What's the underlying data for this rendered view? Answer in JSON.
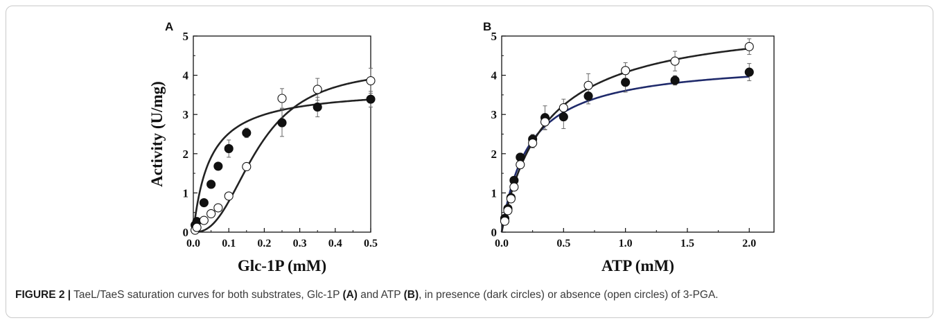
{
  "chart_data": [
    {
      "panel_label": "A",
      "type": "scatter",
      "xlabel": "Glc-1P (mM)",
      "ylabel": "Activity (U/mg)",
      "xlim": [
        0,
        0.5
      ],
      "ylim": [
        0,
        5
      ],
      "xticks": [
        "0.0",
        "0.1",
        "0.2",
        "0.3",
        "0.4",
        "0.5"
      ],
      "yticks": [
        "0",
        "1",
        "2",
        "3",
        "4",
        "5"
      ],
      "series": [
        {
          "marker": "filled",
          "x": [
            0.005,
            0.01,
            0.03,
            0.05,
            0.07,
            0.1,
            0.15,
            0.25,
            0.35,
            0.5
          ],
          "y": [
            0.18,
            0.27,
            0.75,
            1.22,
            1.68,
            2.13,
            2.53,
            2.79,
            3.19,
            3.39
          ],
          "err": [
            0.03,
            0.03,
            0.05,
            0.06,
            0.08,
            0.22,
            0.12,
            0.35,
            0.25,
            0.2
          ],
          "fit": {
            "model": "mm",
            "vmax": 3.7,
            "k": 0.047
          }
        },
        {
          "marker": "open",
          "x": [
            0.005,
            0.01,
            0.03,
            0.05,
            0.07,
            0.1,
            0.15,
            0.25,
            0.35,
            0.5
          ],
          "y": [
            0.05,
            0.12,
            0.3,
            0.47,
            0.62,
            0.92,
            1.67,
            3.41,
            3.64,
            3.86
          ],
          "err": [
            0.02,
            0.02,
            0.03,
            0.04,
            0.05,
            0.07,
            0.08,
            0.25,
            0.28,
            0.32
          ],
          "fit": {
            "model": "hill",
            "vmax": 4.2,
            "k": 0.18,
            "n": 2.5
          }
        }
      ]
    },
    {
      "panel_label": "B",
      "type": "scatter",
      "xlabel": "ATP (mM)",
      "ylabel": "",
      "xlim": [
        0,
        2.2
      ],
      "ylim": [
        0,
        5
      ],
      "xticks": [
        "0.0",
        "0.5",
        "1.0",
        "1.5",
        "2.0"
      ],
      "xtick_values": [
        0,
        0.5,
        1.0,
        1.5,
        2.0
      ],
      "yticks": [
        "0",
        "1",
        "2",
        "3",
        "4",
        "5"
      ],
      "series": [
        {
          "marker": "filled",
          "color": "#1f2a6b",
          "x": [
            0.025,
            0.05,
            0.075,
            0.1,
            0.15,
            0.25,
            0.35,
            0.5,
            0.7,
            1.0,
            1.4,
            2.0
          ],
          "y": [
            0.35,
            0.6,
            0.88,
            1.32,
            1.91,
            2.37,
            2.92,
            2.94,
            3.47,
            3.82,
            3.87,
            4.08
          ],
          "err": [
            0.05,
            0.05,
            0.06,
            0.08,
            0.1,
            0.12,
            0.3,
            0.3,
            0.2,
            0.25,
            0.12,
            0.22
          ],
          "fit": {
            "model": "mm",
            "vmax": 4.4,
            "k": 0.22
          }
        },
        {
          "marker": "open",
          "color": "#222222",
          "x": [
            0.025,
            0.05,
            0.075,
            0.1,
            0.15,
            0.25,
            0.35,
            0.5,
            0.7,
            1.0,
            1.4,
            2.0
          ],
          "y": [
            0.28,
            0.55,
            0.85,
            1.15,
            1.72,
            2.27,
            2.81,
            3.17,
            3.74,
            4.12,
            4.36,
            4.73
          ],
          "err": [
            0.05,
            0.05,
            0.06,
            0.08,
            0.1,
            0.12,
            0.2,
            0.22,
            0.3,
            0.2,
            0.25,
            0.2
          ],
          "fit": {
            "model": "mm",
            "vmax": 5.5,
            "k": 0.35
          }
        }
      ]
    }
  ],
  "caption": {
    "label": "FIGURE 2 |",
    "text_1": " TaeL/TaeS saturation curves for both substrates, Glc-1P ",
    "ref_a": "(A)",
    "text_2": " and ATP ",
    "ref_b": "(B)",
    "text_3": ", in presence (dark circles) or absence (open circles) of 3-PGA."
  }
}
